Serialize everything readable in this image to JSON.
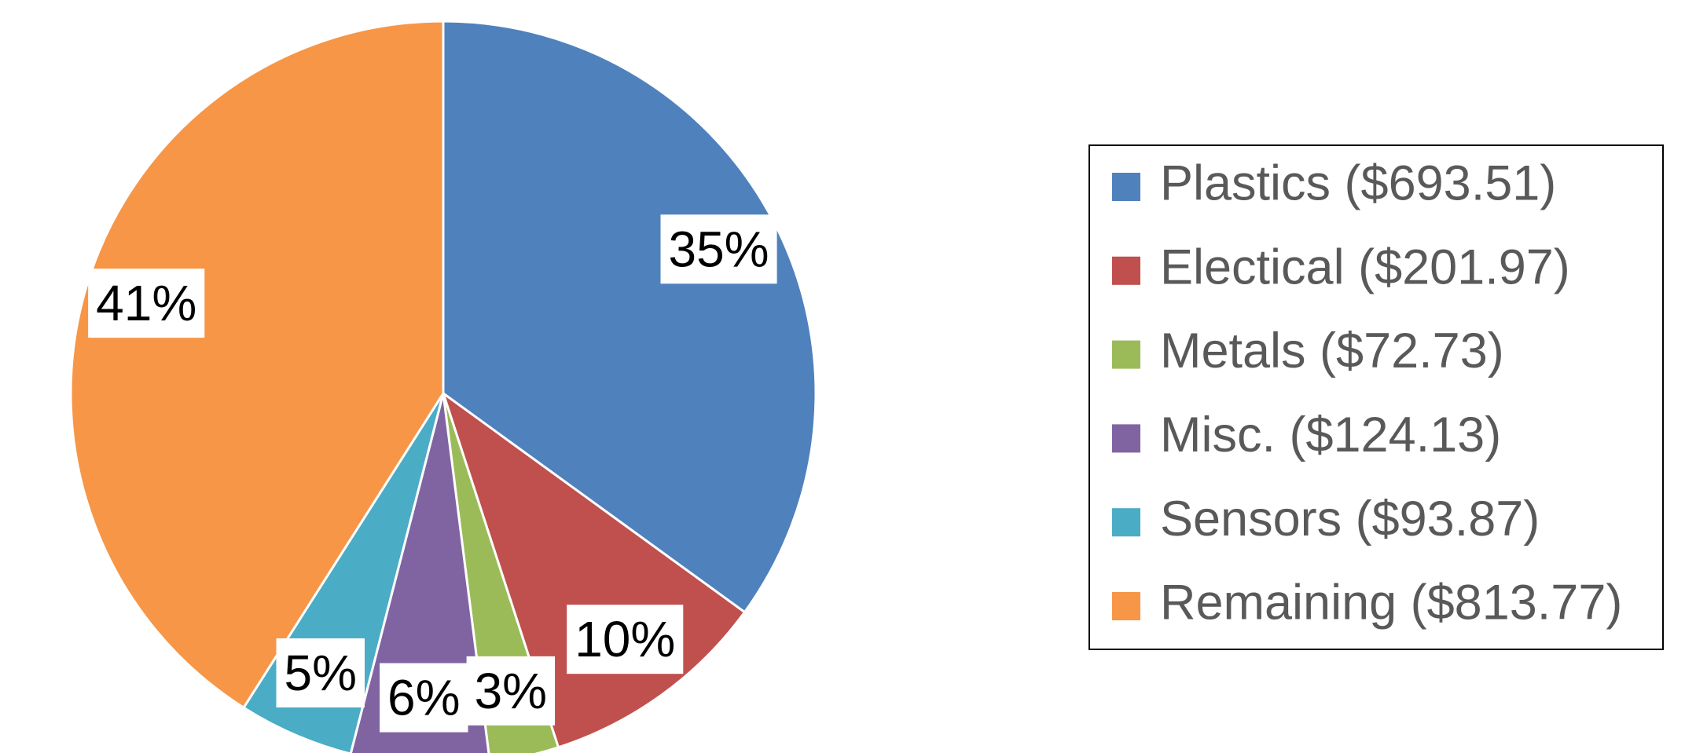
{
  "chart_data": {
    "type": "pie",
    "categories": [
      "Plastics ($693.51)",
      "Electical ($201.97)",
      "Metals ($72.73)",
      "Misc. ($124.13)",
      "Sensors ($93.87)",
      "Remaining ($813.77)"
    ],
    "values": [
      35,
      10,
      3,
      6,
      5,
      41
    ],
    "value_labels": [
      "35%",
      "10%",
      "3%",
      "6%",
      "5%",
      "41%"
    ],
    "colors": [
      "#4f81bd",
      "#c0504d",
      "#9bbb59",
      "#8064a2",
      "#4bacc6",
      "#f79646"
    ],
    "legend": "right"
  }
}
